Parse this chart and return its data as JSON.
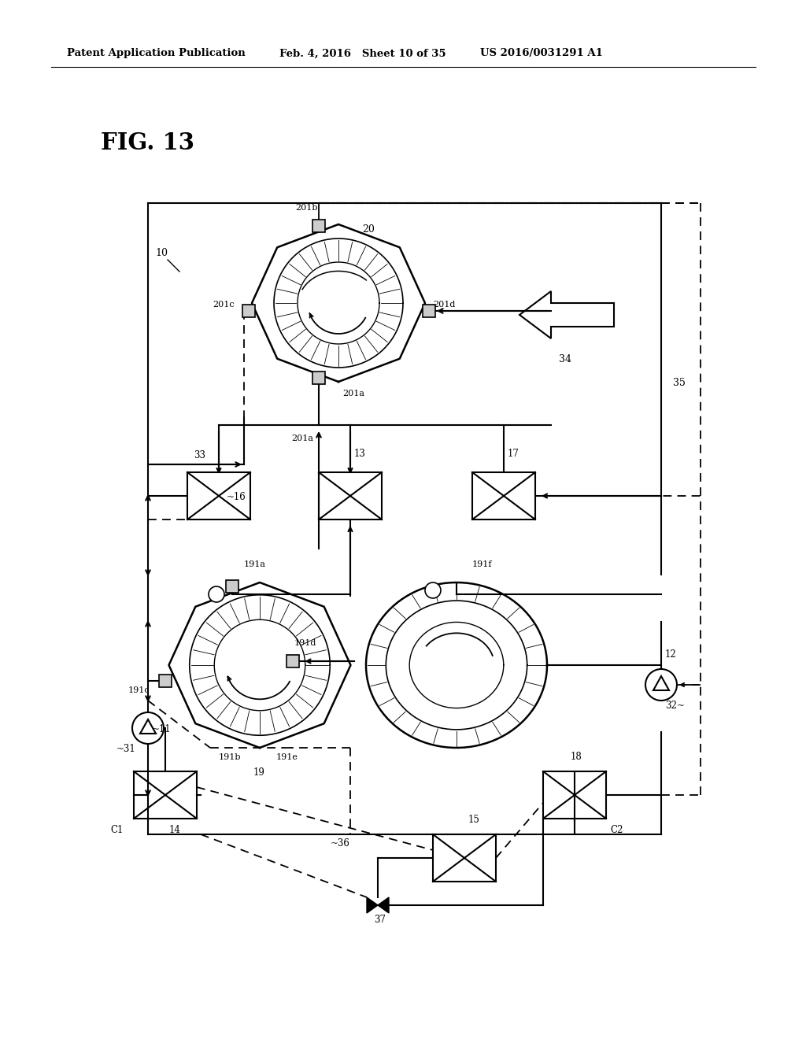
{
  "header_left": "Patent Application Publication",
  "header_mid": "Feb. 4, 2016   Sheet 10 of 35",
  "header_right": "US 2016/0031291 A1",
  "fig_label": "FIG. 13",
  "bg_color": "#ffffff",
  "line_color": "#000000"
}
